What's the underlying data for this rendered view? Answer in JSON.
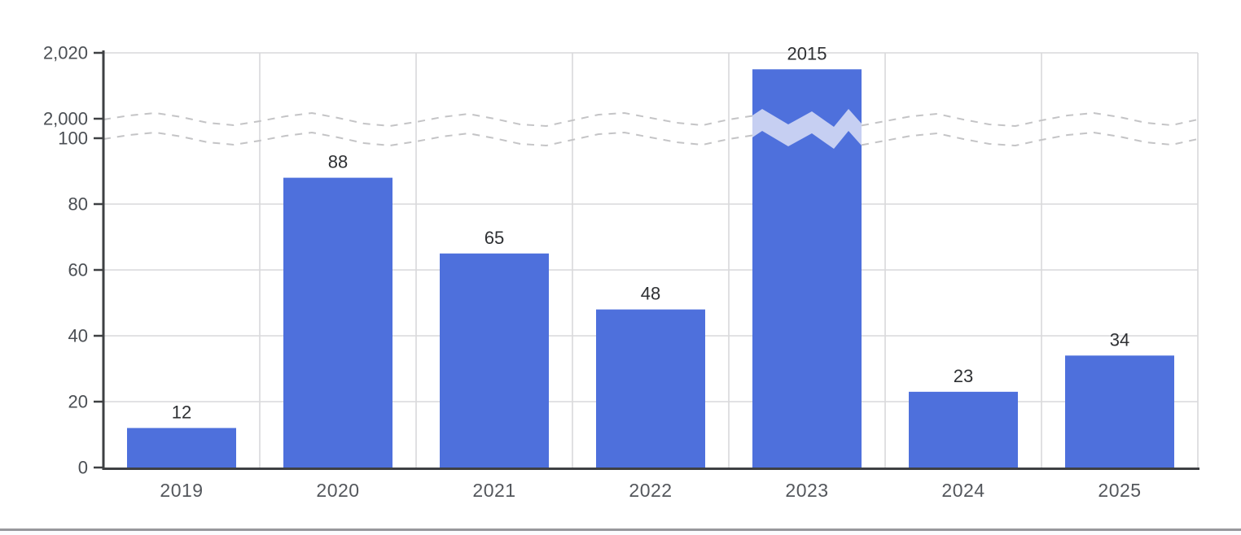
{
  "chart_data": {
    "type": "bar",
    "title": "",
    "xlabel": "",
    "ylabel": "",
    "categories": [
      "2019",
      "2020",
      "2021",
      "2022",
      "2023",
      "2024",
      "2025"
    ],
    "values": [
      12,
      88,
      65,
      48,
      2015,
      23,
      34
    ],
    "value_labels": [
      "12",
      "88",
      "65",
      "48",
      "2015",
      "23",
      "34"
    ],
    "y_axis": {
      "ticks": [
        {
          "value": 0,
          "label": "0"
        },
        {
          "value": 20,
          "label": "20"
        },
        {
          "value": 40,
          "label": "40"
        },
        {
          "value": 60,
          "label": "60"
        },
        {
          "value": 80,
          "label": "80"
        },
        {
          "value": 100,
          "label": "100"
        },
        {
          "value": 2000,
          "label": "2,000"
        },
        {
          "value": 2020,
          "label": "2,020"
        }
      ],
      "break": {
        "between": [
          100,
          2000
        ],
        "style": "wavy-dashed"
      }
    },
    "ylim_lower_segment": [
      0,
      100
    ],
    "ylim_upper_segment": [
      2000,
      2020
    ],
    "grid": true,
    "legend": null,
    "colors": {
      "bar": "#4E70DC",
      "break_band": "#C6CFF2",
      "grid": "#D9D9DB",
      "axis": "#3E4043",
      "dash_line": "#C4C4C6",
      "value_text": "#2E3033",
      "tick_text": "#4B4F54",
      "x_tick_text": "#54575C",
      "divider": "#98989D"
    }
  }
}
